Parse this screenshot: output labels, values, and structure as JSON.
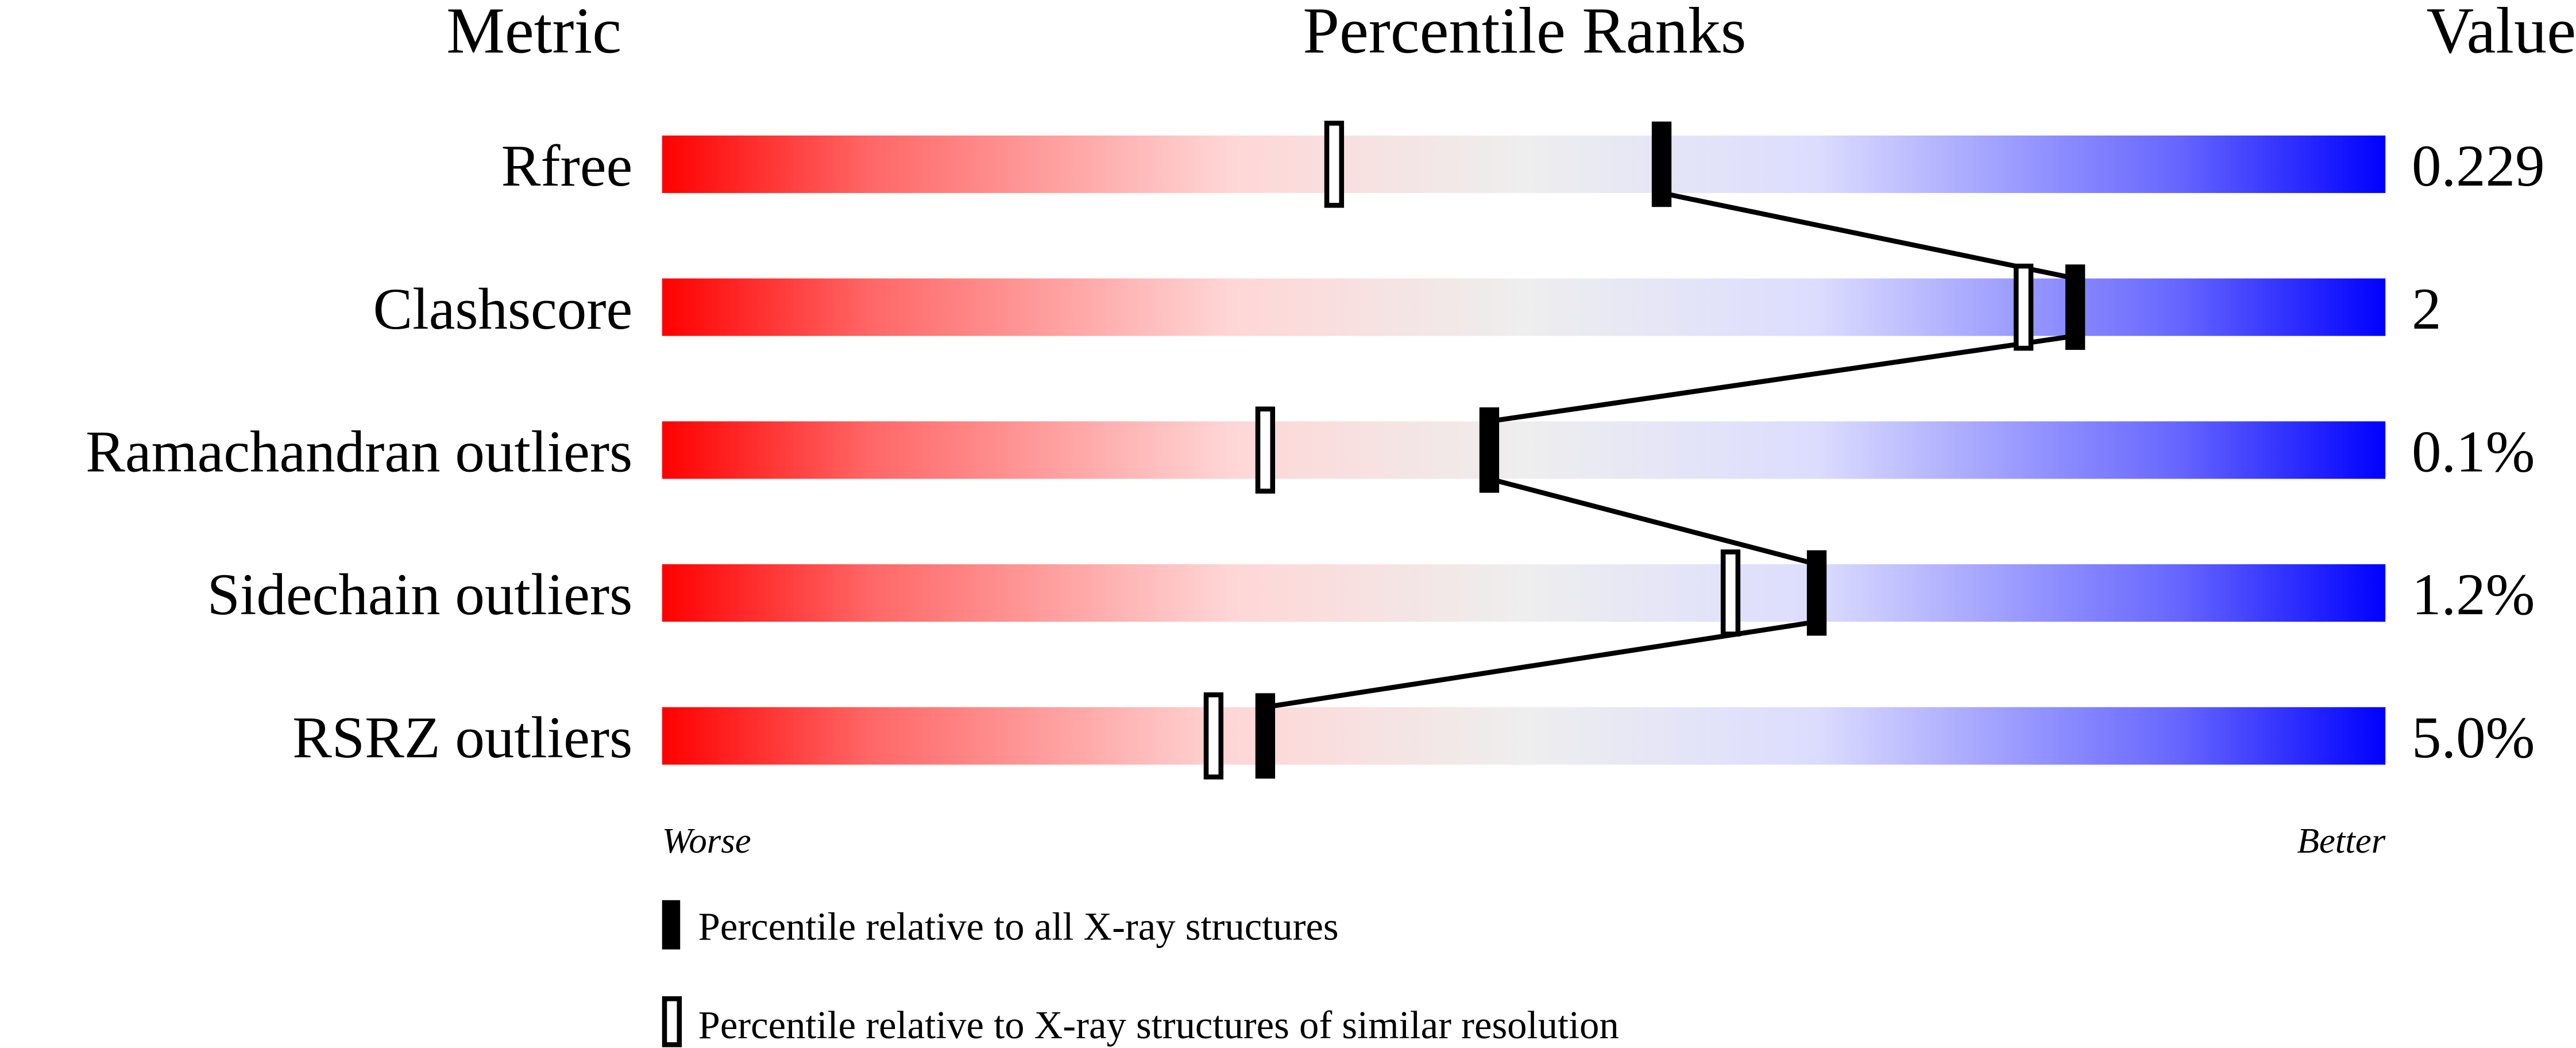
{
  "chart_data": {
    "type": "percentile-slider",
    "headers": {
      "metric": "Metric",
      "ranks": "Percentile Ranks",
      "value": "Value"
    },
    "xlim": [
      0,
      100
    ],
    "rows": [
      {
        "metric": "Rfree",
        "value": "0.229",
        "percentile_all": 58,
        "percentile_similar": 39
      },
      {
        "metric": "Clashscore",
        "value": "2",
        "percentile_all": 82,
        "percentile_similar": 79
      },
      {
        "metric": "Ramachandran outliers",
        "value": "0.1%",
        "percentile_all": 48,
        "percentile_similar": 35
      },
      {
        "metric": "Sidechain outliers",
        "value": "1.2%",
        "percentile_all": 67,
        "percentile_similar": 62
      },
      {
        "metric": "RSRZ outliers",
        "value": "5.0%",
        "percentile_all": 35,
        "percentile_similar": 32
      }
    ],
    "axis_labels": {
      "left": "Worse",
      "right": "Better"
    },
    "legend": [
      {
        "marker": "filled",
        "label": "Percentile relative to all X-ray structures"
      },
      {
        "marker": "open",
        "label": "Percentile relative to X-ray structures of similar resolution"
      }
    ],
    "colors": {
      "worse": "#ff0000",
      "middle": "#eeeeee",
      "better": "#0000ff"
    }
  }
}
